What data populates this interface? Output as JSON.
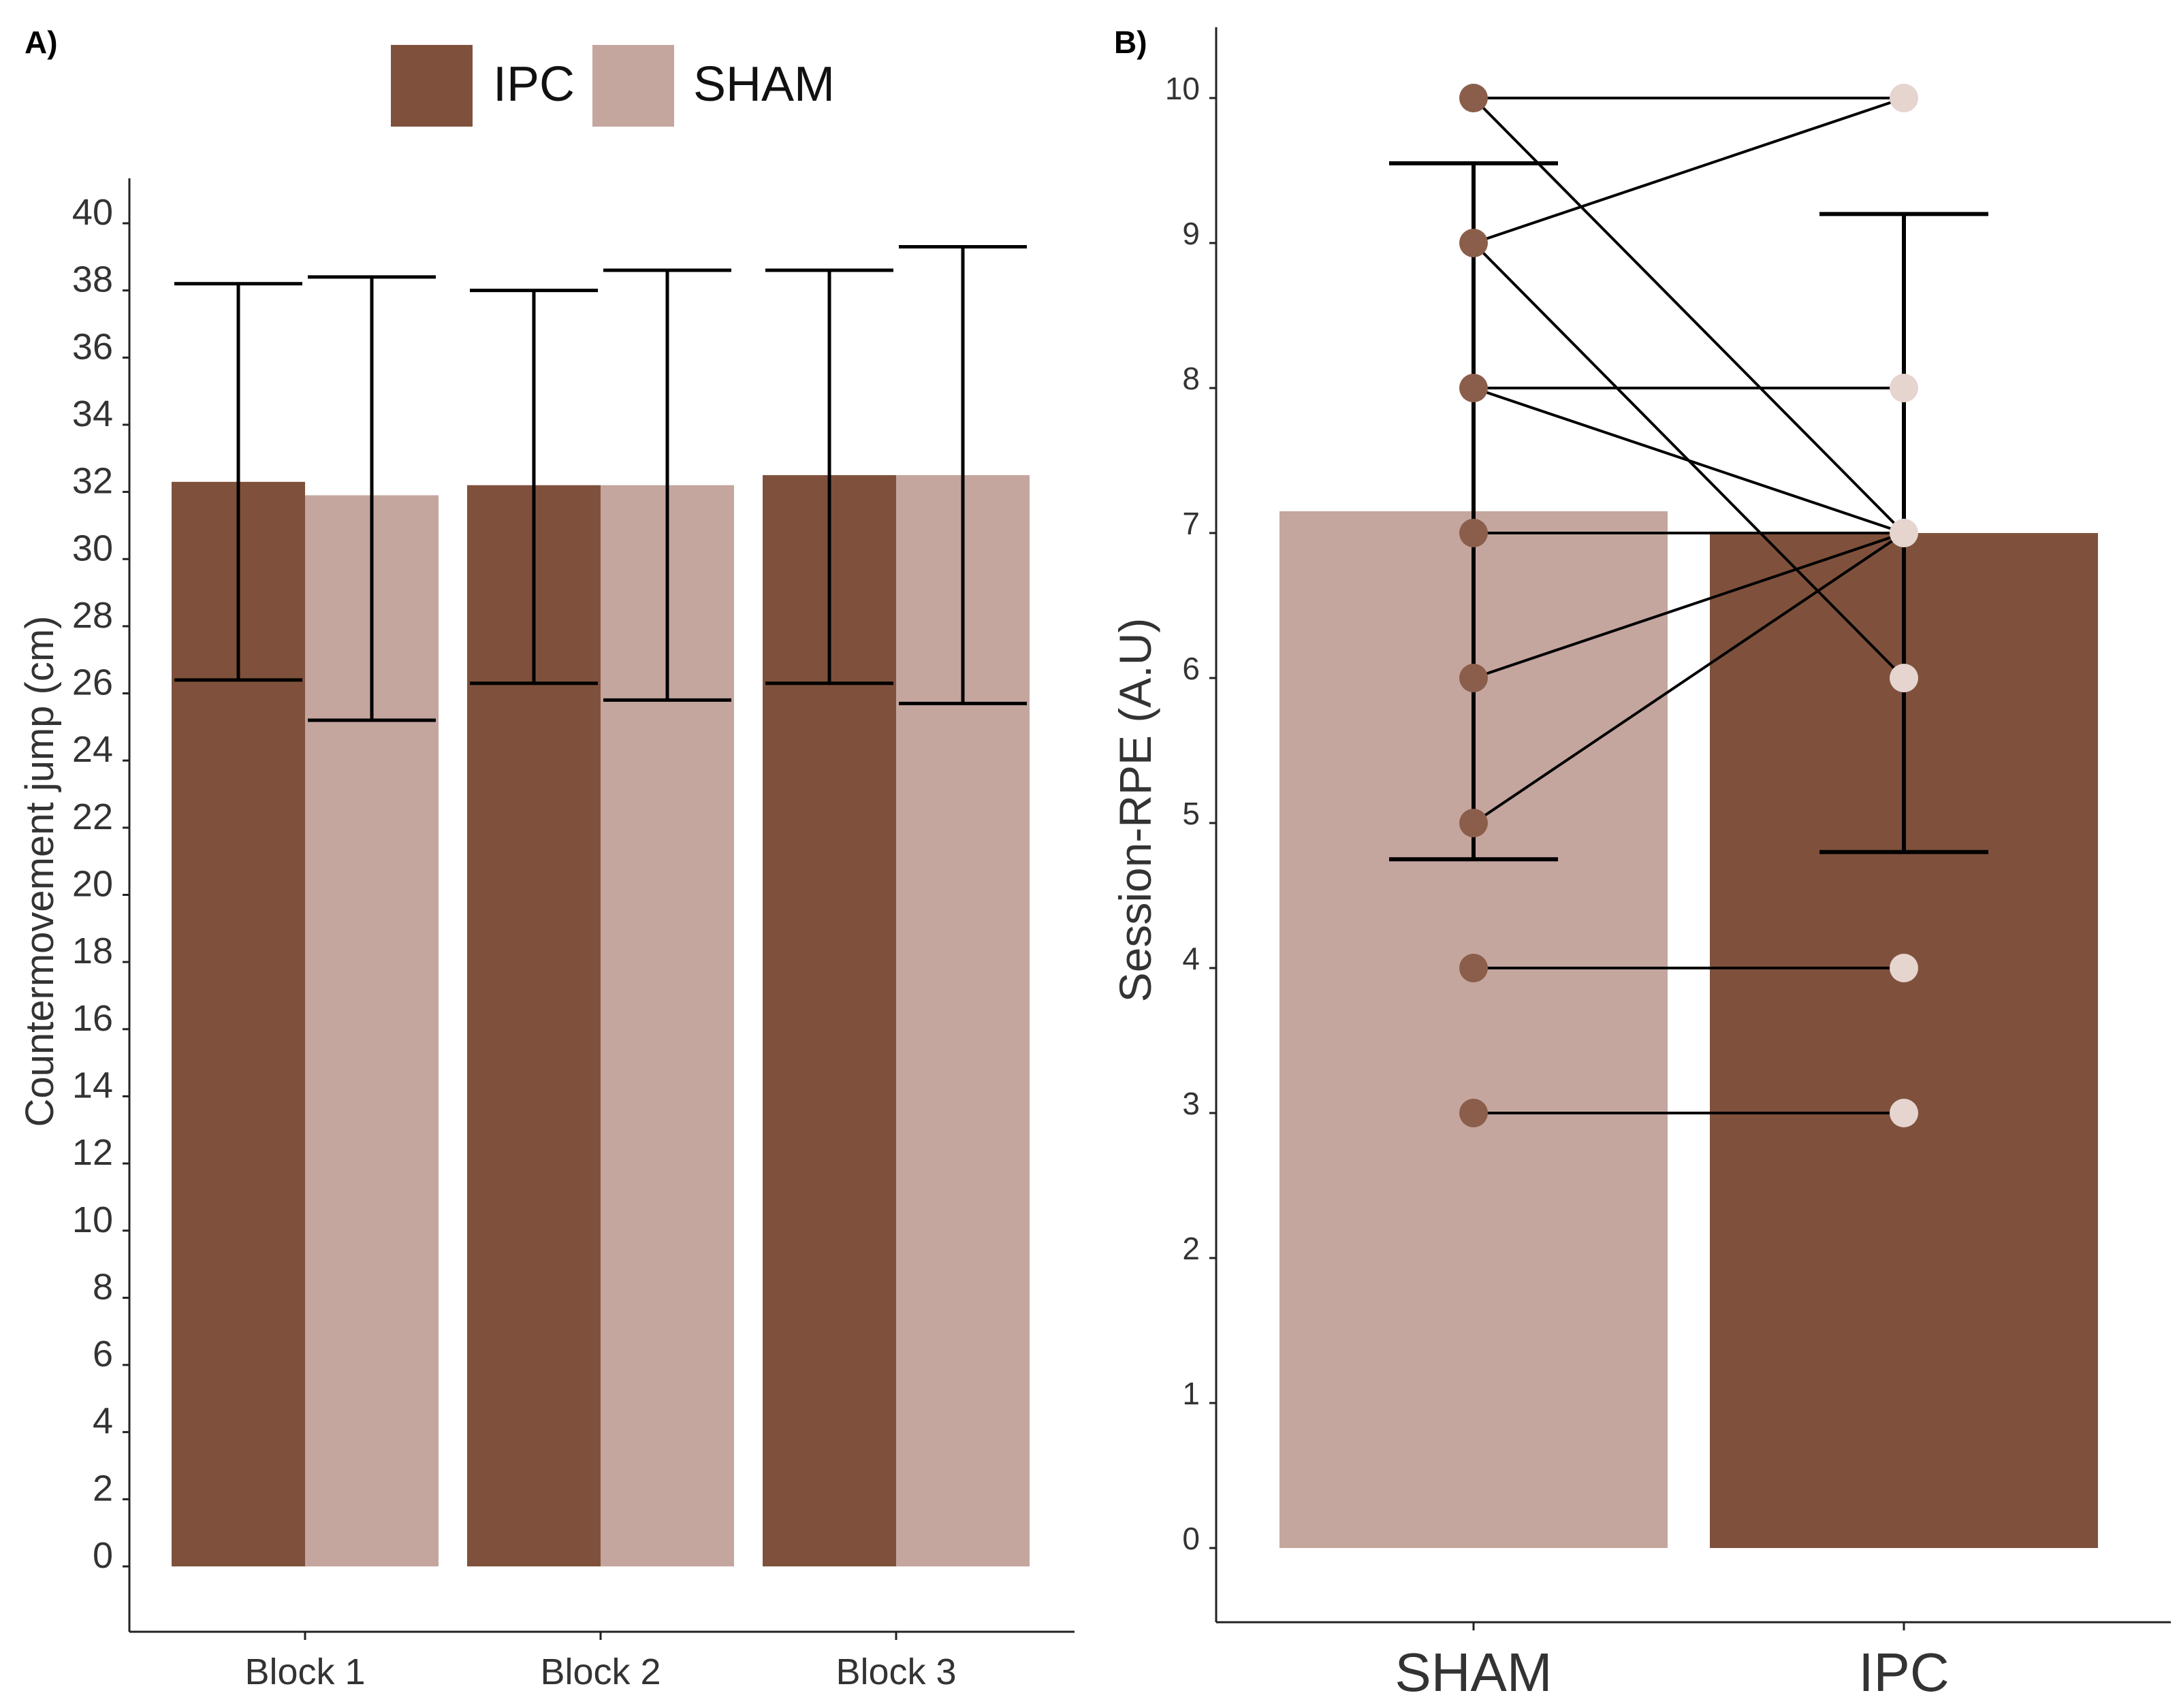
{
  "colors": {
    "ipc": "#7f513c",
    "sham": "#c4a69e",
    "axis": "#222222",
    "text": "#333333"
  },
  "legend": {
    "items": [
      {
        "label": "IPC",
        "color": "#7f513c"
      },
      {
        "label": "SHAM",
        "color": "#c4a69e"
      }
    ]
  },
  "chart_data": [
    {
      "panel_label": "A)",
      "type": "bar",
      "ylabel": "Countermovement jump   (cm)",
      "xlabel": "",
      "ylim": [
        0,
        40
      ],
      "yticks": [
        0,
        2,
        4,
        6,
        8,
        10,
        12,
        14,
        16,
        18,
        20,
        22,
        24,
        26,
        28,
        30,
        32,
        34,
        36,
        38,
        40
      ],
      "categories": [
        "Block 1",
        "Block 2",
        "Block 3"
      ],
      "grid": false,
      "legend_position": "top",
      "series": [
        {
          "name": "IPC",
          "color": "#7f513c",
          "values": [
            32.3,
            32.2,
            32.5
          ],
          "error_low": [
            26.4,
            26.3,
            26.3
          ],
          "error_high": [
            38.2,
            38.0,
            38.6
          ]
        },
        {
          "name": "SHAM",
          "color": "#c4a69e",
          "values": [
            31.9,
            32.2,
            32.5
          ],
          "error_low": [
            25.2,
            25.8,
            25.7
          ],
          "error_high": [
            38.4,
            38.6,
            39.3
          ]
        }
      ]
    },
    {
      "panel_label": "B)",
      "type": "bar",
      "ylabel": "Session-RPE  (A.U)",
      "xlabel": "",
      "ylim": [
        0,
        10
      ],
      "yticks": [
        0,
        1,
        2,
        3,
        4,
        5,
        6,
        7,
        8,
        9,
        10
      ],
      "categories": [
        "SHAM",
        "IPC"
      ],
      "grid": false,
      "values": [
        7.15,
        7.0
      ],
      "colors": [
        "#c4a69e",
        "#7f513c"
      ],
      "error_low": [
        4.75,
        4.8
      ],
      "error_high": [
        9.55,
        9.2
      ],
      "paired_lines": [
        {
          "sham": 10,
          "ipc": 10
        },
        {
          "sham": 10,
          "ipc": 7
        },
        {
          "sham": 9,
          "ipc": 10
        },
        {
          "sham": 9,
          "ipc": 6
        },
        {
          "sham": 8,
          "ipc": 8
        },
        {
          "sham": 8,
          "ipc": 7
        },
        {
          "sham": 7,
          "ipc": 7
        },
        {
          "sham": 6,
          "ipc": 7
        },
        {
          "sham": 5,
          "ipc": 7
        },
        {
          "sham": 4,
          "ipc": 4
        },
        {
          "sham": 3,
          "ipc": 3
        }
      ],
      "point_colors": {
        "sham": "#8a5e4a",
        "ipc": "#e6d4cf"
      }
    }
  ]
}
